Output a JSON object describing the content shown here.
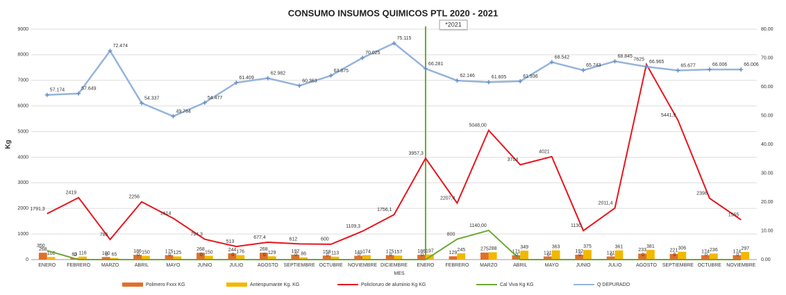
{
  "chart_data": {
    "type": "combo",
    "title": "CONSUMO INSUMOS QUIMICOS PTL 2020 - 2021",
    "annotation": "*2021",
    "y_label": "Kg",
    "x_label": "MES",
    "categories": [
      "ENERO",
      "FEBRERO",
      "MARZO",
      "ABRIL",
      "MAYO",
      "JUNIO",
      "JULIO",
      "AGOSTO",
      "SEPTIEMBRE",
      "OCTUBRE",
      "NOVIEMBRE",
      "DICIEMBRE",
      "ENERO",
      "FEBRERO",
      "MARZO",
      "ABRIL",
      "MAYO",
      "JUNIO",
      "JULIO",
      "AGOSTO",
      "SEPTIEMBRE",
      "OCTUBRE",
      "NOVIEMBRE"
    ],
    "ylim": [
      0,
      9000
    ],
    "yticks": [
      0,
      1000,
      2000,
      3000,
      4000,
      5000,
      6000,
      7000,
      8000,
      9000
    ],
    "y2lim": [
      0,
      80
    ],
    "y2ticks": [
      {
        "value": 0,
        "label": "0.00"
      },
      {
        "value": 10,
        "label": "10.00"
      },
      {
        "value": 20,
        "label": "20.00"
      },
      {
        "value": 30,
        "label": "30.00"
      },
      {
        "value": 40,
        "label": "40.00"
      },
      {
        "value": 50,
        "label": "50.00"
      },
      {
        "value": 60,
        "label": "60.00"
      },
      {
        "value": 70,
        "label": "70.00"
      },
      {
        "value": 80,
        "label": "80.00"
      }
    ],
    "grid": true,
    "legend": "bottom",
    "series": [
      {
        "name": "Polimero Fxxx KG",
        "kind": "bar",
        "color": "#e0702a",
        "values": [
          268,
          63,
          100,
          186,
          175,
          268,
          244,
          268,
          192,
          158,
          149,
          175,
          186,
          129,
          275,
          171,
          121,
          192,
          121,
          233,
          221,
          174,
          174
        ]
      },
      {
        "name": "Antiespumante Kg. KG",
        "kind": "bar",
        "color": "#f2b800",
        "values": [
          100,
          116,
          65,
          150,
          125,
          150,
          176,
          129,
          86,
          113,
          174,
          157,
          197,
          245,
          288,
          349,
          363,
          375,
          361,
          381,
          306,
          236,
          297
        ]
      },
      {
        "name": "Policloruro de aluminio Kg KG",
        "kind": "line",
        "color": "#e8141c",
        "values": [
          1791.3,
          2419,
          785,
          2256,
          1614,
          794.3,
          513,
          677.4,
          612,
          600,
          1109.3,
          1756.1,
          3957.3,
          2207.4,
          5048,
          3704,
          4021,
          1130,
          2011.4,
          7625,
          5441.9,
          2398,
          1555
        ],
        "value_labels": [
          "1791,3",
          "2419",
          "785",
          "2256",
          "1614",
          "794,3",
          "513",
          "677,4",
          "612",
          "600",
          "1109,3",
          "1756,1",
          "3957,3",
          "2207,4",
          "5048,00",
          "3704",
          "4021",
          "1130",
          "2011,4",
          "7625",
          "5441,9",
          "2398",
          "1555"
        ]
      },
      {
        "name": "Cal Viva Kg KG",
        "kind": "line",
        "color": "#6aa832",
        "values": [
          350,
          0,
          0,
          0,
          0,
          0,
          0,
          0,
          0,
          0,
          0,
          0,
          0,
          800,
          1140,
          0,
          0,
          0,
          0,
          0,
          0,
          0,
          0
        ],
        "value_labels": [
          "350",
          "0",
          "0",
          "0",
          "0",
          "0",
          "0",
          "0",
          "0",
          "0",
          "0",
          "0",
          "0",
          "800",
          "1140,00",
          "0",
          "0",
          "0",
          "0",
          "0",
          "0",
          "0",
          "0"
        ]
      },
      {
        "name": "Q DEPURADO",
        "kind": "line",
        "axis": "y2",
        "marker": true,
        "color": "#95b4dc",
        "values": [
          57.174,
          57.649,
          72.474,
          54.337,
          49.764,
          54.477,
          61.409,
          62.982,
          60.363,
          63.875,
          70.025,
          75.115,
          66.281,
          62.146,
          61.605,
          61.936,
          68.542,
          65.743,
          68.845,
          66.965,
          65.677,
          66.006,
          66.006
        ]
      }
    ]
  }
}
